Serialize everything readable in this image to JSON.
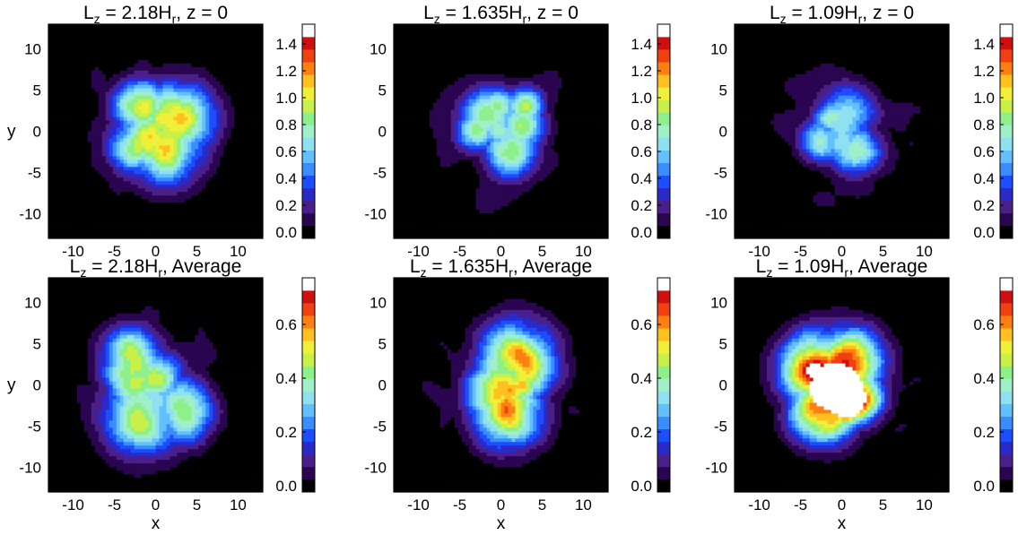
{
  "chart_data": [
    {
      "type": "heatmap",
      "title": {
        "main": "L",
        "sub1": "z",
        "mid": " = 2.18H",
        "sub2": "r",
        "end": ", z = 0"
      },
      "xlabel": "",
      "ylabel": "y",
      "xlim": [
        -13,
        13
      ],
      "ylim": [
        -13,
        13
      ],
      "x_ticks": [
        -10,
        -5,
        0,
        5,
        10
      ],
      "y_ticks": [
        -10,
        -5,
        0,
        5,
        10
      ],
      "show_xticklabels": true,
      "show_yticklabels": true,
      "colorbar": {
        "min": 0.0,
        "max": 1.5,
        "ticks": [
          "0.0",
          "0.2",
          "0.4",
          "0.6",
          "0.8",
          "1.0",
          "1.2",
          "1.4"
        ]
      },
      "field": {
        "shape": "blob",
        "peak": 1.35,
        "radius": 7.5,
        "hole": false,
        "seed": 3
      }
    },
    {
      "type": "heatmap",
      "title": {
        "main": "L",
        "sub1": "z",
        "mid": " = 1.635H",
        "sub2": "r",
        "end": ", z = 0"
      },
      "xlabel": "",
      "ylabel": "",
      "xlim": [
        -13,
        13
      ],
      "ylim": [
        -13,
        13
      ],
      "x_ticks": [
        -10,
        -5,
        0,
        5,
        10
      ],
      "y_ticks": [
        -10,
        -5,
        0,
        5,
        10
      ],
      "show_xticklabels": true,
      "show_yticklabels": true,
      "colorbar": {
        "min": 0.0,
        "max": 1.5,
        "ticks": [
          "0.0",
          "0.2",
          "0.4",
          "0.6",
          "0.8",
          "1.0",
          "1.2",
          "1.4"
        ]
      },
      "field": {
        "shape": "blob",
        "peak": 1.1,
        "radius": 7.0,
        "hole": false,
        "seed": 7
      }
    },
    {
      "type": "heatmap",
      "title": {
        "main": "L",
        "sub1": "z",
        "mid": " = 1.09H",
        "sub2": "r",
        "end": ", z = 0"
      },
      "xlabel": "",
      "ylabel": "",
      "xlim": [
        -13,
        13
      ],
      "ylim": [
        -13,
        13
      ],
      "x_ticks": [
        -10,
        -5,
        0,
        5,
        10
      ],
      "y_ticks": [
        -10,
        -5,
        0,
        5,
        10
      ],
      "show_xticklabels": true,
      "show_yticklabels": true,
      "colorbar": {
        "min": 0.0,
        "max": 1.5,
        "ticks": [
          "0.0",
          "0.2",
          "0.4",
          "0.6",
          "0.8",
          "1.0",
          "1.2",
          "1.4"
        ]
      },
      "field": {
        "shape": "blob",
        "peak": 0.95,
        "radius": 6.0,
        "hole": false,
        "seed": 11
      }
    },
    {
      "type": "heatmap",
      "title": {
        "main": "L",
        "sub1": "z",
        "mid": " = 2.18H",
        "sub2": "r",
        "end": ", Average"
      },
      "xlabel": "x",
      "ylabel": "y",
      "xlim": [
        -13,
        13
      ],
      "ylim": [
        -13,
        13
      ],
      "x_ticks": [
        -10,
        -5,
        0,
        5,
        10
      ],
      "y_ticks": [
        -10,
        -5,
        0,
        5,
        10
      ],
      "show_xticklabels": true,
      "show_yticklabels": true,
      "colorbar": {
        "min": 0.0,
        "max": 0.75,
        "ticks": [
          "0.0",
          "0.2",
          "0.4",
          "0.6"
        ]
      },
      "field": {
        "shape": "blob",
        "peak": 0.58,
        "radius": 8.5,
        "hole": false,
        "seed": 17
      }
    },
    {
      "type": "heatmap",
      "title": {
        "main": "L",
        "sub1": "z",
        "mid": " = 1.635H",
        "sub2": "r",
        "end": ", Average"
      },
      "xlabel": "x",
      "ylabel": "",
      "xlim": [
        -13,
        13
      ],
      "ylim": [
        -13,
        13
      ],
      "x_ticks": [
        -10,
        -5,
        0,
        5,
        10
      ],
      "y_ticks": [
        -10,
        -5,
        0,
        5,
        10
      ],
      "show_xticklabels": true,
      "show_yticklabels": true,
      "colorbar": {
        "min": 0.0,
        "max": 0.75,
        "ticks": [
          "0.0",
          "0.2",
          "0.4",
          "0.6"
        ]
      },
      "field": {
        "shape": "blob",
        "peak": 0.7,
        "radius": 7.5,
        "hole": false,
        "seed": 23
      }
    },
    {
      "type": "heatmap",
      "title": {
        "main": "L",
        "sub1": "z",
        "mid": " = 1.09H",
        "sub2": "r",
        "end": ", Average"
      },
      "xlabel": "x",
      "ylabel": "",
      "xlim": [
        -13,
        13
      ],
      "ylim": [
        -13,
        13
      ],
      "x_ticks": [
        -10,
        -5,
        0,
        5,
        10
      ],
      "y_ticks": [
        -10,
        -5,
        0,
        5,
        10
      ],
      "show_xticklabels": true,
      "show_yticklabels": true,
      "colorbar": {
        "min": 0.0,
        "max": 0.75,
        "ticks": [
          "0.0",
          "0.2",
          "0.4",
          "0.6"
        ]
      },
      "field": {
        "shape": "blob",
        "peak": 0.9,
        "radius": 7.0,
        "hole": true,
        "seed": 31
      }
    }
  ],
  "colormap": [
    "#000000",
    "#2a0550",
    "#4b1f8a",
    "#2a2ac8",
    "#1c4dff",
    "#3a8cff",
    "#62c0ff",
    "#8fe0f0",
    "#9ff0c8",
    "#8df08a",
    "#c8f048",
    "#f0f03a",
    "#ffc020",
    "#ff8010",
    "#f04010",
    "#d01010",
    "#ffffff"
  ]
}
